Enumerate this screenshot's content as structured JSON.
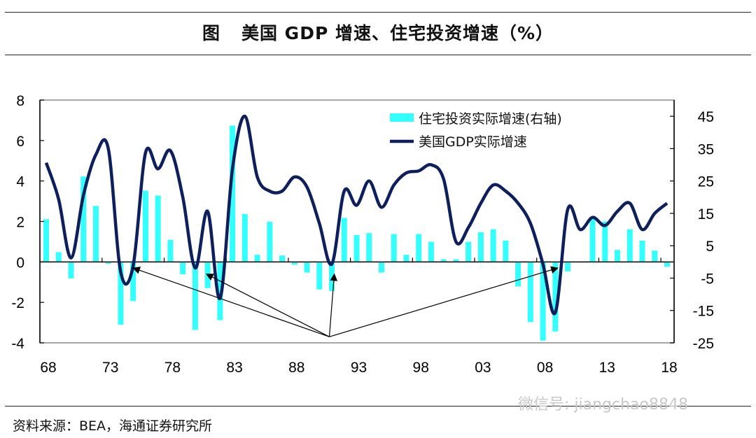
{
  "title": {
    "figure_label": "图",
    "text": "美国 GDP 增速、住宅投资增速（%）"
  },
  "source": "资料来源：BEA，海通证券研究所",
  "watermark": "微信号: jiangchao8848",
  "chart_data": {
    "type": "bar+line",
    "x_tick_labels": [
      "68",
      "73",
      "78",
      "83",
      "88",
      "93",
      "98",
      "03",
      "08",
      "13",
      "18"
    ],
    "x_tick_years": [
      1968,
      1973,
      1978,
      1983,
      1988,
      1993,
      1998,
      2003,
      2008,
      2013,
      2018
    ],
    "years": [
      1968,
      1969,
      1970,
      1971,
      1972,
      1973,
      1974,
      1975,
      1976,
      1977,
      1978,
      1979,
      1980,
      1981,
      1982,
      1983,
      1984,
      1985,
      1986,
      1987,
      1988,
      1989,
      1990,
      1991,
      1992,
      1993,
      1994,
      1995,
      1996,
      1997,
      1998,
      1999,
      2000,
      2001,
      2002,
      2003,
      2004,
      2005,
      2006,
      2007,
      2008,
      2009,
      2010,
      2011,
      2012,
      2013,
      2014,
      2015,
      2016,
      2017,
      2018
    ],
    "left_axis": {
      "ylim": [
        -4,
        8
      ],
      "ticks": [
        "8",
        "6",
        "4",
        "2",
        "0",
        "-2",
        "-4"
      ],
      "tick_values": [
        8,
        6,
        4,
        2,
        0,
        -2,
        -4
      ]
    },
    "right_axis": {
      "ylim": [
        -25,
        50
      ],
      "ticks": [
        "45",
        "35",
        "25",
        "15",
        "5",
        "-5",
        "-15",
        "-25"
      ],
      "tick_values": [
        45,
        35,
        25,
        15,
        5,
        -5,
        -15,
        -25
      ]
    },
    "series": [
      {
        "name": "住宅投资实际增速(右轴)",
        "type": "bar",
        "axis": "right",
        "color": "#33ffff",
        "values": [
          13.2,
          3.0,
          -5.1,
          26.4,
          17.3,
          -0.6,
          -19.4,
          -12.1,
          22.0,
          20.5,
          6.8,
          -3.8,
          -21.0,
          -8.1,
          -18.0,
          42.1,
          14.8,
          2.2,
          12.4,
          2.0,
          -0.9,
          -3.3,
          -8.5,
          -9.0,
          13.6,
          8.3,
          8.9,
          -3.3,
          8.6,
          2.2,
          8.6,
          6.2,
          0.8,
          0.8,
          6.2,
          9.2,
          10.1,
          6.6,
          -7.6,
          -18.6,
          -24.3,
          -21.5,
          -2.9,
          0.1,
          13.6,
          12.5,
          3.7,
          10.1,
          6.6,
          3.5,
          -1.5
        ]
      },
      {
        "name": "美国GDP实际增速",
        "type": "line",
        "axis": "left",
        "color": "#0d1f5c",
        "values": [
          4.9,
          3.1,
          0.2,
          3.3,
          5.3,
          5.6,
          -0.5,
          -0.2,
          5.4,
          4.6,
          5.5,
          3.2,
          -0.3,
          2.5,
          -1.8,
          4.6,
          7.2,
          4.2,
          3.5,
          3.5,
          4.2,
          3.7,
          1.9,
          -0.1,
          3.5,
          2.8,
          4.0,
          2.7,
          3.8,
          4.4,
          4.5,
          4.8,
          4.1,
          1.0,
          1.7,
          2.9,
          3.8,
          3.5,
          2.9,
          1.9,
          -0.1,
          -2.5,
          2.6,
          1.6,
          2.2,
          1.8,
          2.5,
          2.9,
          1.6,
          2.4,
          2.9
        ]
      }
    ],
    "legend_placement": "top-right",
    "annotations": {
      "type": "arrows",
      "origin": {
        "year": 1990.8,
        "left_value": -3.7
      },
      "targets": [
        {
          "year": 1975,
          "left_value": -0.3
        },
        {
          "year": 1980.9,
          "left_value": -0.6
        },
        {
          "year": 1991.2,
          "left_value": -0.6
        },
        {
          "year": 2009.2,
          "left_value": -0.3
        }
      ]
    }
  }
}
